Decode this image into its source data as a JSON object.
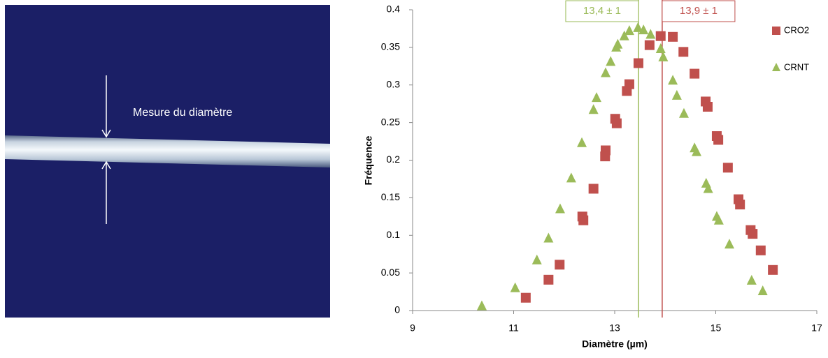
{
  "photo": {
    "annotation": "Mesure du diamètre"
  },
  "chart_data": {
    "type": "scatter",
    "x_label": "Diamètre (µm)",
    "y_label": "Fréquence",
    "xlim": [
      9,
      17
    ],
    "xticks": [
      9,
      11,
      13,
      15,
      17
    ],
    "ylim": [
      0,
      0.4
    ],
    "yticks": [
      0,
      0.05,
      0.1,
      0.15,
      0.2,
      0.25,
      0.3,
      0.35,
      0.4
    ],
    "legend": "right",
    "series": [
      {
        "name": "CRO2",
        "color": "#c0504d",
        "marker": "square",
        "x": [
          11.24,
          11.69,
          11.91,
          12.36,
          12.38,
          12.58,
          12.82,
          12.81,
          13.01,
          13.04,
          13.24,
          13.29,
          13.47,
          13.69,
          13.91,
          14.15,
          14.36,
          14.58,
          14.8,
          14.84,
          15.02,
          15.05,
          15.24,
          15.45,
          15.48,
          15.69,
          15.73,
          15.89,
          16.13
        ],
        "values": [
          0.017,
          0.041,
          0.061,
          0.125,
          0.12,
          0.162,
          0.213,
          0.205,
          0.255,
          0.249,
          0.292,
          0.301,
          0.329,
          0.353,
          0.365,
          0.364,
          0.344,
          0.315,
          0.278,
          0.271,
          0.232,
          0.227,
          0.19,
          0.148,
          0.141,
          0.107,
          0.102,
          0.08,
          0.054
        ]
      },
      {
        "name": "CRNT",
        "color": "#9bbb59",
        "marker": "triangle",
        "x": [
          10.37,
          11.03,
          11.46,
          11.69,
          11.92,
          12.14,
          12.35,
          12.58,
          12.64,
          12.82,
          12.92,
          13.03,
          13.06,
          13.19,
          13.29,
          13.46,
          13.57,
          13.71,
          13.91,
          13.96,
          14.15,
          14.23,
          14.37,
          14.58,
          14.62,
          14.81,
          14.85,
          15.02,
          15.06,
          15.27,
          15.71,
          15.93
        ],
        "values": [
          0.006,
          0.03,
          0.067,
          0.096,
          0.135,
          0.176,
          0.223,
          0.267,
          0.283,
          0.316,
          0.331,
          0.35,
          0.354,
          0.365,
          0.372,
          0.376,
          0.373,
          0.367,
          0.348,
          0.337,
          0.306,
          0.286,
          0.262,
          0.216,
          0.211,
          0.169,
          0.162,
          0.125,
          0.12,
          0.088,
          0.04,
          0.026
        ]
      }
    ],
    "annotations": [
      {
        "x": 13.47,
        "label": "13,4 ± 1",
        "color": "#9bbb59",
        "side": "left"
      },
      {
        "x": 13.94,
        "label": "13,9 ± 1",
        "color": "#c0504d",
        "side": "right"
      }
    ]
  }
}
